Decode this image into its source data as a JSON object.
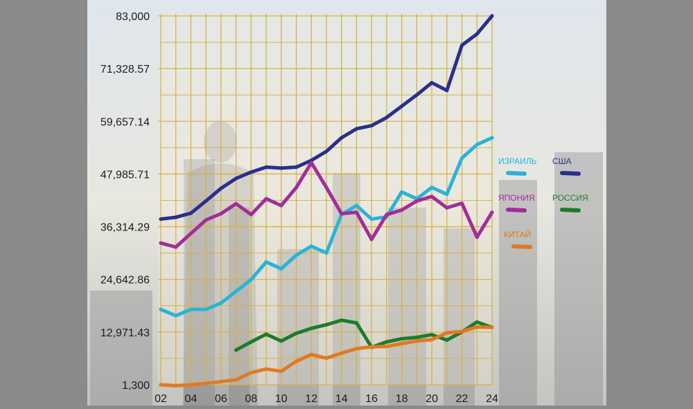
{
  "chart_data": {
    "type": "line",
    "title": "",
    "xlabel": "",
    "ylabel": "",
    "x_tick_labels": [
      "02",
      "04",
      "06",
      "08",
      "10",
      "12",
      "14",
      "16",
      "18",
      "20",
      "22",
      "24"
    ],
    "y_tick_labels": [
      "1,300",
      "12,971.43",
      "24,642.86",
      "36,314.29",
      "47,985.71",
      "59,657.14",
      "71,328.57",
      "83,000"
    ],
    "ylim": [
      1300,
      83000
    ],
    "xlim": [
      2002,
      2024
    ],
    "grid": true,
    "legend_position": "right",
    "series": [
      {
        "name": "США",
        "color": "#2a2f8c",
        "x": [
          2002,
          2003,
          2004,
          2005,
          2006,
          2007,
          2008,
          2009,
          2010,
          2011,
          2012,
          2013,
          2014,
          2015,
          2016,
          2017,
          2018,
          2019,
          2020,
          2021,
          2022,
          2023,
          2024
        ],
        "values": [
          38000,
          38400,
          39300,
          42000,
          44800,
          47000,
          48400,
          49500,
          49300,
          49500,
          51000,
          53000,
          56000,
          58000,
          58700,
          60500,
          63000,
          65500,
          68200,
          66500,
          76500,
          79000,
          83000
        ]
      },
      {
        "name": "ИЗРАИЛЬ",
        "color": "#2ab3d8",
        "x": [
          2002,
          2003,
          2004,
          2005,
          2006,
          2007,
          2008,
          2009,
          2010,
          2011,
          2012,
          2013,
          2014,
          2015,
          2016,
          2017,
          2018,
          2019,
          2020,
          2021,
          2022,
          2023,
          2024
        ],
        "values": [
          18000,
          16600,
          18000,
          18000,
          19400,
          22000,
          24600,
          28500,
          27000,
          30000,
          32000,
          30500,
          39000,
          41000,
          38000,
          38500,
          44000,
          42500,
          45000,
          43500,
          51500,
          54500,
          56000
        ]
      },
      {
        "name": "ЯПОНИЯ",
        "color": "#a22d9a",
        "x": [
          2002,
          2003,
          2004,
          2005,
          2006,
          2007,
          2008,
          2009,
          2010,
          2011,
          2012,
          2013,
          2014,
          2015,
          2016,
          2017,
          2018,
          2019,
          2020,
          2021,
          2022,
          2023,
          2024
        ],
        "values": [
          32700,
          31800,
          34800,
          37800,
          39200,
          41400,
          39000,
          42500,
          41000,
          45000,
          50500,
          45000,
          39200,
          39500,
          33500,
          39000,
          40000,
          42000,
          43000,
          40500,
          41500,
          34000,
          39500
        ]
      },
      {
        "name": "РОССИЯ",
        "color": "#1e7a2c",
        "x": [
          2007,
          2008,
          2009,
          2010,
          2011,
          2012,
          2013,
          2014,
          2015,
          2016,
          2017,
          2018,
          2019,
          2020,
          2021,
          2022,
          2023,
          2024
        ],
        "values": [
          9000,
          10800,
          12500,
          11000,
          12700,
          13800,
          14600,
          15600,
          15000,
          9600,
          10800,
          11500,
          11800,
          12400,
          11200,
          13000,
          15200,
          14000
        ]
      },
      {
        "name": "КИТАЙ",
        "color": "#e07a22",
        "x": [
          2002,
          2003,
          2004,
          2005,
          2006,
          2007,
          2008,
          2009,
          2010,
          2011,
          2012,
          2013,
          2014,
          2015,
          2016,
          2017,
          2018,
          2019,
          2020,
          2021,
          2022,
          2023,
          2024
        ],
        "values": [
          1300,
          1100,
          1300,
          1600,
          2000,
          2400,
          4000,
          4800,
          4300,
          6500,
          8000,
          7200,
          8300,
          9300,
          9700,
          9800,
          10400,
          11000,
          11300,
          12800,
          13100,
          14100,
          14000
        ]
      }
    ]
  }
}
